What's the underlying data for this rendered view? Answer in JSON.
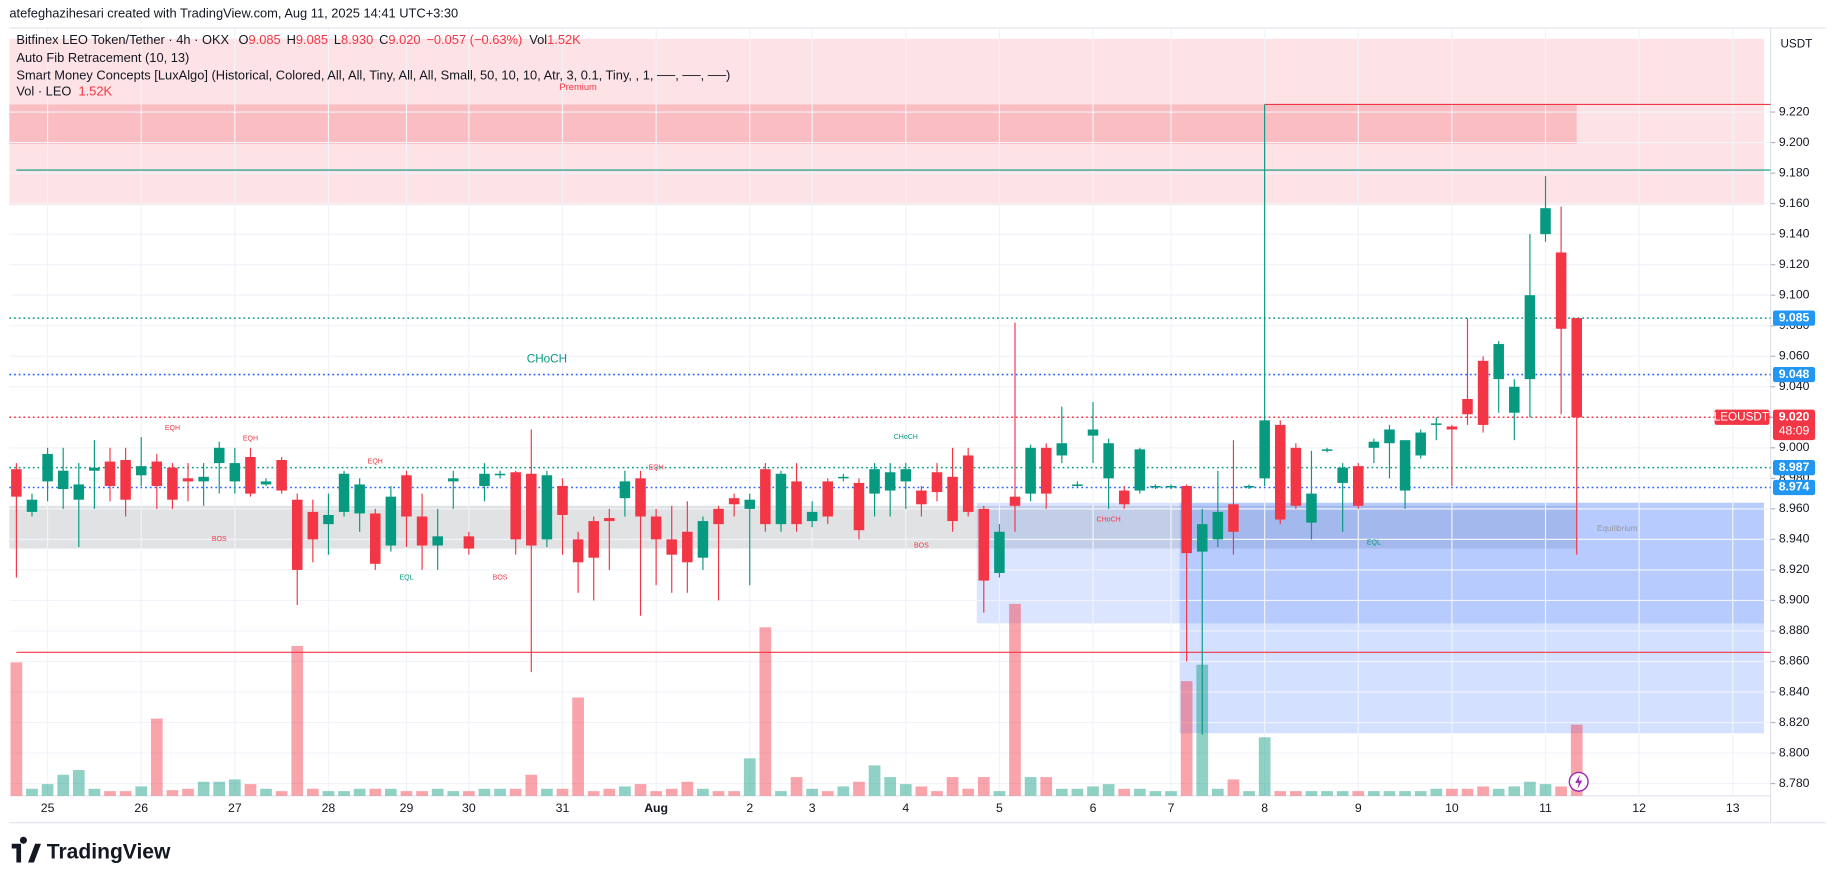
{
  "header": {
    "credit": "atefeghazihesari created with TradingView.com, Aug 11, 2025 14:41 UTC+3:30",
    "symbol": "Bitfinex LEO Token/Tether · 4h · OKX",
    "ohlc": [
      {
        "key": "O",
        "value": "9.085"
      },
      {
        "key": "H",
        "value": "9.085"
      },
      {
        "key": "L",
        "value": "8.930"
      },
      {
        "key": "C",
        "value": "9.020"
      }
    ],
    "change": "−0.057 (−0.63%)",
    "vol_key": "Vol",
    "vol": "1.52K",
    "indicators": [
      "Auto Fib Retracement (10, 13)",
      "Smart Money Concepts [LuxAlgo] (Historical, Colored, All, All, Tiny, All, All, Small, 50, 10, 10, Atr, 3, 0.1, Tiny, , 1, ──, ──, ──)"
    ],
    "vol_line": "Vol · LEO",
    "vol_value": "1.52K",
    "currency": "USDT"
  },
  "footer": {
    "logo": "TradingView"
  },
  "chart_data": {
    "type": "candlestick",
    "categories": [
      null,
      null,
      "25",
      null,
      null,
      null,
      null,
      null,
      "26",
      null,
      null,
      null,
      null,
      null,
      "27",
      null,
      null,
      null,
      null,
      null,
      "28",
      null,
      null,
      null,
      null,
      "29",
      null,
      null,
      null,
      "30",
      null,
      null,
      null,
      null,
      null,
      "31",
      null,
      null,
      null,
      null,
      null,
      "Aug",
      null,
      null,
      null,
      null,
      null,
      "2",
      null,
      null,
      null,
      "3",
      null,
      null,
      null,
      null,
      null,
      "4",
      null,
      null,
      null,
      null,
      null,
      "5",
      null,
      null,
      null,
      null,
      null,
      "6",
      null,
      null,
      null,
      null,
      "7",
      null,
      null,
      null,
      null,
      null,
      "8",
      null,
      null,
      null,
      null,
      null,
      "9",
      null,
      null,
      null,
      null,
      null,
      "10",
      null,
      null,
      null,
      null,
      null,
      "11",
      null,
      null,
      null,
      null,
      null,
      "12",
      null,
      null,
      null,
      null,
      null,
      "13",
      null
    ],
    "open": [
      8.986,
      8.958,
      8.978,
      8.973,
      8.966,
      8.985,
      8.991,
      8.992,
      8.982,
      8.991,
      8.987,
      8.98,
      8.978,
      8.99,
      8.978,
      8.994,
      8.976,
      8.992,
      8.966,
      8.958,
      8.95,
      8.958,
      8.957,
      8.957,
      8.936,
      8.982,
      8.955,
      8.936,
      8.978,
      8.942,
      8.975,
      8.982,
      8.984,
      8.983,
      8.94,
      8.975,
      8.94,
      8.952,
      8.954,
      8.967,
      8.98,
      8.955,
      8.94,
      8.945,
      8.928,
      8.96,
      8.967,
      8.96,
      8.986,
      8.95,
      8.978,
      8.952,
      8.978,
      8.98,
      8.977,
      8.97,
      8.972,
      8.978,
      8.972,
      8.984,
      8.981,
      8.995,
      8.96,
      8.918,
      8.968,
      8.97,
      9.0,
      8.995,
      8.975,
      9.008,
      8.98,
      8.972,
      8.972,
      8.974,
      8.974,
      8.975,
      8.932,
      8.94,
      8.963,
      8.974,
      8.98,
      9.015,
      9.0,
      8.951,
      8.998,
      8.977,
      8.988,
      9.0,
      9.003,
      8.972,
      8.995,
      9.015,
      9.014,
      9.032,
      9.057,
      9.045,
      9.023,
      9.045,
      9.14,
      9.128,
      9.085,
      null,
      null,
      null,
      null,
      null,
      null,
      null,
      null,
      null,
      null,
      null
    ],
    "high": [
      8.99,
      8.97,
      9.0,
      9.0,
      8.99,
      9.005,
      9.0,
      9.0,
      9.007,
      8.996,
      8.99,
      8.99,
      8.99,
      9.004,
      9.0,
      9.0,
      8.98,
      8.994,
      8.97,
      8.966,
      8.97,
      8.985,
      8.98,
      8.96,
      8.975,
      8.985,
      8.97,
      8.96,
      8.985,
      8.945,
      8.99,
      8.985,
      8.985,
      9.012,
      8.985,
      8.98,
      8.945,
      8.955,
      8.96,
      8.985,
      8.985,
      8.96,
      8.962,
      8.965,
      8.955,
      8.962,
      8.97,
      8.97,
      8.99,
      8.985,
      8.99,
      8.965,
      8.98,
      8.983,
      8.98,
      8.99,
      8.99,
      8.99,
      8.975,
      8.99,
      9.0,
      9.0,
      8.962,
      8.95,
      9.082,
      9.002,
      9.003,
      9.027,
      8.978,
      9.03,
      9.006,
      8.975,
      9.0,
      8.976,
      8.976,
      8.976,
      8.96,
      8.985,
      9.005,
      8.976,
      9.225,
      9.018,
      9.003,
      8.998,
      9.0,
      8.99,
      8.99,
      9.006,
      9.015,
      9.005,
      9.012,
      9.02,
      9.015,
      9.085,
      9.06,
      9.07,
      9.045,
      9.14,
      9.178,
      9.158,
      9.085,
      null,
      null,
      null,
      null,
      null,
      null,
      null,
      null,
      null,
      null,
      null
    ],
    "low": [
      8.915,
      8.955,
      8.965,
      8.96,
      8.935,
      8.96,
      8.965,
      8.955,
      8.975,
      8.96,
      8.96,
      8.965,
      8.962,
      8.97,
      8.97,
      8.968,
      8.975,
      8.97,
      8.897,
      8.925,
      8.93,
      8.955,
      8.945,
      8.92,
      8.932,
      8.935,
      8.92,
      8.92,
      8.96,
      8.93,
      8.965,
      8.98,
      8.93,
      8.853,
      8.935,
      8.93,
      8.905,
      8.9,
      8.92,
      8.955,
      8.89,
      8.91,
      8.905,
      8.905,
      8.92,
      8.9,
      8.955,
      8.91,
      8.945,
      8.945,
      8.945,
      8.948,
      8.95,
      8.978,
      8.94,
      8.955,
      8.955,
      8.96,
      8.955,
      8.965,
      8.945,
      8.955,
      8.892,
      8.915,
      8.945,
      8.965,
      8.96,
      8.99,
      8.974,
      8.99,
      8.96,
      8.96,
      8.97,
      8.973,
      8.973,
      8.86,
      8.812,
      8.935,
      8.93,
      8.973,
      8.975,
      8.95,
      8.96,
      8.94,
      8.997,
      8.945,
      8.96,
      8.99,
      8.98,
      8.96,
      8.993,
      9.005,
      8.975,
      9.015,
      9.01,
      9.023,
      9.005,
      9.02,
      9.135,
      9.022,
      8.93,
      null,
      null,
      null,
      null,
      null,
      null,
      null,
      null,
      null,
      null,
      null
    ],
    "close": [
      8.968,
      8.966,
      8.996,
      8.985,
      8.976,
      8.987,
      8.975,
      8.966,
      8.988,
      8.975,
      8.966,
      8.978,
      8.981,
      9.0,
      8.99,
      8.97,
      8.978,
      8.972,
      8.92,
      8.94,
      8.956,
      8.983,
      8.976,
      8.924,
      8.968,
      8.955,
      8.936,
      8.942,
      8.98,
      8.934,
      8.983,
      8.983,
      8.94,
      8.936,
      8.982,
      8.956,
      8.925,
      8.928,
      8.952,
      8.978,
      8.955,
      8.94,
      8.93,
      8.925,
      8.952,
      8.95,
      8.963,
      8.966,
      8.95,
      8.983,
      8.95,
      8.958,
      8.955,
      8.981,
      8.946,
      8.986,
      8.984,
      8.986,
      8.963,
      8.971,
      8.952,
      8.958,
      8.913,
      8.945,
      8.962,
      9.0,
      8.97,
      9.003,
      8.976,
      9.012,
      9.003,
      8.963,
      8.999,
      8.975,
      8.975,
      8.931,
      8.95,
      8.958,
      8.945,
      8.975,
      9.018,
      8.953,
      8.962,
      8.97,
      8.999,
      8.987,
      8.962,
      9.004,
      9.012,
      9.005,
      9.01,
      9.016,
      9.012,
      9.022,
      9.015,
      9.068,
      9.04,
      9.1,
      9.157,
      9.078,
      9.02,
      null,
      null,
      null,
      null,
      null,
      null,
      null,
      null,
      null,
      null,
      null
    ],
    "volume": [
      2850,
      150,
      250,
      450,
      550,
      150,
      100,
      100,
      200,
      1650,
      120,
      150,
      300,
      300,
      350,
      250,
      150,
      100,
      3200,
      150,
      100,
      100,
      150,
      150,
      150,
      100,
      100,
      150,
      100,
      100,
      150,
      150,
      150,
      450,
      150,
      150,
      2100,
      100,
      150,
      200,
      250,
      100,
      150,
      300,
      150,
      100,
      100,
      800,
      3600,
      100,
      400,
      150,
      100,
      200,
      300,
      650,
      400,
      250,
      200,
      100,
      400,
      150,
      400,
      100,
      4100,
      400,
      400,
      150,
      150,
      200,
      250,
      150,
      150,
      100,
      100,
      2450,
      2800,
      150,
      350,
      100,
      1250,
      100,
      100,
      100,
      100,
      100,
      100,
      100,
      100,
      100,
      100,
      150,
      150,
      150,
      200,
      150,
      200,
      300,
      250,
      200,
      1520,
      null,
      null,
      null,
      null,
      null,
      null,
      null,
      null,
      null,
      null,
      null
    ],
    "up_color": "#089981",
    "down_color": "#f23645",
    "vol_up_color": "rgba(8,153,129,0.45)",
    "vol_down_color": "rgba(242,54,69,0.45)",
    "ylim": [
      8.772,
      9.275
    ],
    "yticks": [
      {
        "value": 8.78,
        "label": "8.780"
      },
      {
        "value": 8.8,
        "label": "8.800"
      },
      {
        "value": 8.82,
        "label": "8.820"
      },
      {
        "value": 8.84,
        "label": "8.840"
      },
      {
        "value": 8.86,
        "label": "8.860"
      },
      {
        "value": 8.88,
        "label": "8.880"
      },
      {
        "value": 8.9,
        "label": "8.900"
      },
      {
        "value": 8.92,
        "label": "8.920"
      },
      {
        "value": 8.94,
        "label": "8.940"
      },
      {
        "value": 8.96,
        "label": "8.960"
      },
      {
        "value": 8.98,
        "label": "8.980"
      },
      {
        "value": 9.0,
        "label": "9.000"
      },
      {
        "value": 9.02,
        "label": "9.020"
      },
      {
        "value": 9.04,
        "label": "9.040"
      },
      {
        "value": 9.06,
        "label": "9.060"
      },
      {
        "value": 9.08,
        "label": "9.080"
      },
      {
        "value": 9.1,
        "label": "9.100"
      },
      {
        "value": 9.12,
        "label": "9.120"
      },
      {
        "value": 9.14,
        "label": "9.140"
      },
      {
        "value": 9.16,
        "label": "9.160"
      },
      {
        "value": 9.18,
        "label": "9.180"
      },
      {
        "value": 9.2,
        "label": "9.200"
      },
      {
        "value": 9.22,
        "label": "9.220"
      }
    ],
    "grid": true,
    "zones": [
      {
        "top": 9.268,
        "bottom": 9.159,
        "from": 0,
        "to": 112,
        "color": "rgba(242,54,69,0.14)"
      },
      {
        "top": 9.225,
        "bottom": 9.199,
        "from": 0,
        "to": 100,
        "color": "rgba(242,54,69,0.22)"
      },
      {
        "top": 8.962,
        "bottom": 8.934,
        "from": 0,
        "to": 100,
        "color": "rgba(120,123,134,0.22)"
      },
      {
        "top": 8.964,
        "bottom": 8.885,
        "from": 62,
        "to": 112,
        "color": "rgba(41,98,255,0.17)"
      },
      {
        "top": 8.964,
        "bottom": 8.885,
        "from": 75,
        "to": 112,
        "color": "rgba(41,98,255,0.2)"
      },
      {
        "top": 8.885,
        "bottom": 8.813,
        "from": 75,
        "to": 112,
        "color": "rgba(41,98,255,0.2)"
      }
    ],
    "levels": [
      {
        "value": 9.182,
        "color": "#089981",
        "from": 0
      },
      {
        "value": 8.866,
        "color": "#f23645",
        "from": 0
      },
      {
        "value": 9.225,
        "color": "#f23645",
        "from": 80
      }
    ],
    "price_lines": [
      {
        "price": 9.085,
        "line_color": "#089981",
        "box_color": "#2196f3"
      },
      {
        "price": 9.048,
        "line_color": "#2962ff",
        "box_color": "#2196f3"
      },
      {
        "price": {
          "value": 9.02,
          "label": "9.020"
        },
        "line_color": "#f23645",
        "box_color": "#f23645",
        "countdown": "48:09",
        "symbol": "LEOUSDT"
      },
      {
        "price": 8.987,
        "line_color": "#089981",
        "box_color": "#2196f3"
      },
      {
        "price": 8.974,
        "line_color": "#2962ff",
        "box_color": "#2196f3"
      }
    ],
    "annotations": [
      {
        "text": "Premium",
        "x": 36,
        "y": 9.236,
        "color": "#f23645",
        "size": 8
      },
      {
        "text": "CHoCH",
        "x": 34,
        "y": 9.058,
        "color": "#089981",
        "size": 10
      },
      {
        "text": "EQH",
        "x": 10,
        "y": 9.013,
        "color": "#f23645",
        "size": 6
      },
      {
        "text": "EQH",
        "x": 15,
        "y": 9.006,
        "color": "#f23645",
        "size": 6
      },
      {
        "text": "EQH",
        "x": 23,
        "y": 8.991,
        "color": "#f23645",
        "size": 6
      },
      {
        "text": "EQH",
        "x": 41,
        "y": 8.987,
        "color": "#f23645",
        "size": 6
      },
      {
        "text": "BOS",
        "x": 13,
        "y": 8.94,
        "color": "#f23645",
        "size": 6
      },
      {
        "text": "EQL",
        "x": 25,
        "y": 8.915,
        "color": "#089981",
        "size": 6
      },
      {
        "text": "BOS",
        "x": 31,
        "y": 8.915,
        "color": "#f23645",
        "size": 6
      },
      {
        "text": "CHoCH",
        "x": 57,
        "y": 9.007,
        "color": "#089981",
        "size": 6
      },
      {
        "text": "BOS",
        "x": 58,
        "y": 8.936,
        "color": "#f23645",
        "size": 6
      },
      {
        "text": "CHoCH",
        "x": 70,
        "y": 8.953,
        "color": "#f23645",
        "size": 6
      },
      {
        "text": "EQL",
        "x": 87,
        "y": 8.938,
        "color": "#089981",
        "size": 6
      },
      {
        "text": "Equilibrium",
        "x": 102.6,
        "y": 8.947,
        "color": "#9598a1",
        "size": 7
      }
    ]
  }
}
